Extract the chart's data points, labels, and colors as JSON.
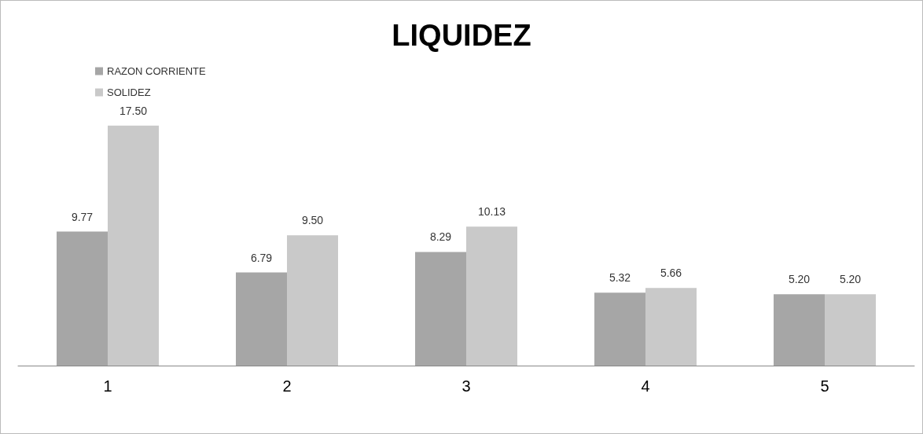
{
  "chart_data": {
    "type": "bar",
    "title": "LIQUIDEZ",
    "categories": [
      "1",
      "2",
      "3",
      "4",
      "5"
    ],
    "series": [
      {
        "name": "RAZON CORRIENTE",
        "color": "#a6a6a6",
        "values": [
          9.77,
          6.79,
          8.29,
          5.32,
          5.2
        ],
        "value_labels": [
          "9.77",
          "6.79",
          "8.29",
          "5.32",
          "5.20"
        ]
      },
      {
        "name": "SOLIDEZ",
        "color": "#c9c9c9",
        "values": [
          17.5,
          9.5,
          10.13,
          5.66,
          5.2
        ],
        "value_labels": [
          "17.50",
          "9.50",
          "10.13",
          "5.66",
          "5.20"
        ]
      }
    ],
    "legend": "top left",
    "grid": false
  }
}
